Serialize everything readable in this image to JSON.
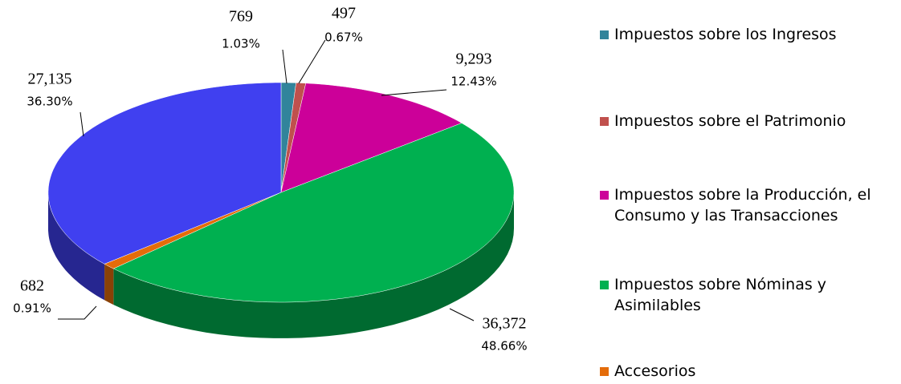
{
  "chart_data": {
    "type": "pie3d",
    "categories": [
      "Impuestos sobre los Ingresos",
      "Impuestos sobre el Patrimonio",
      "Impuestos sobre la Producción, el Consumo y las Transacciones",
      "Impuestos sobre Nóminas y Asimilables",
      "Accesorios",
      null
    ],
    "values": [
      769,
      497,
      9293,
      36372,
      682,
      27135
    ],
    "value_labels": [
      "769",
      "497",
      "9,293",
      "36,372",
      "682",
      "27,135"
    ],
    "percents": [
      1.03,
      0.67,
      12.43,
      48.66,
      0.91,
      36.3
    ],
    "percent_labels": [
      "1.03%",
      "0.67%",
      "12.43%",
      "48.66%",
      "0.91%",
      "36.30%"
    ],
    "colors": [
      "#31849b",
      "#c0504d",
      "#cc0099",
      "#00b050",
      "#e46c0a",
      "#4040f0"
    ],
    "legend": "right"
  }
}
